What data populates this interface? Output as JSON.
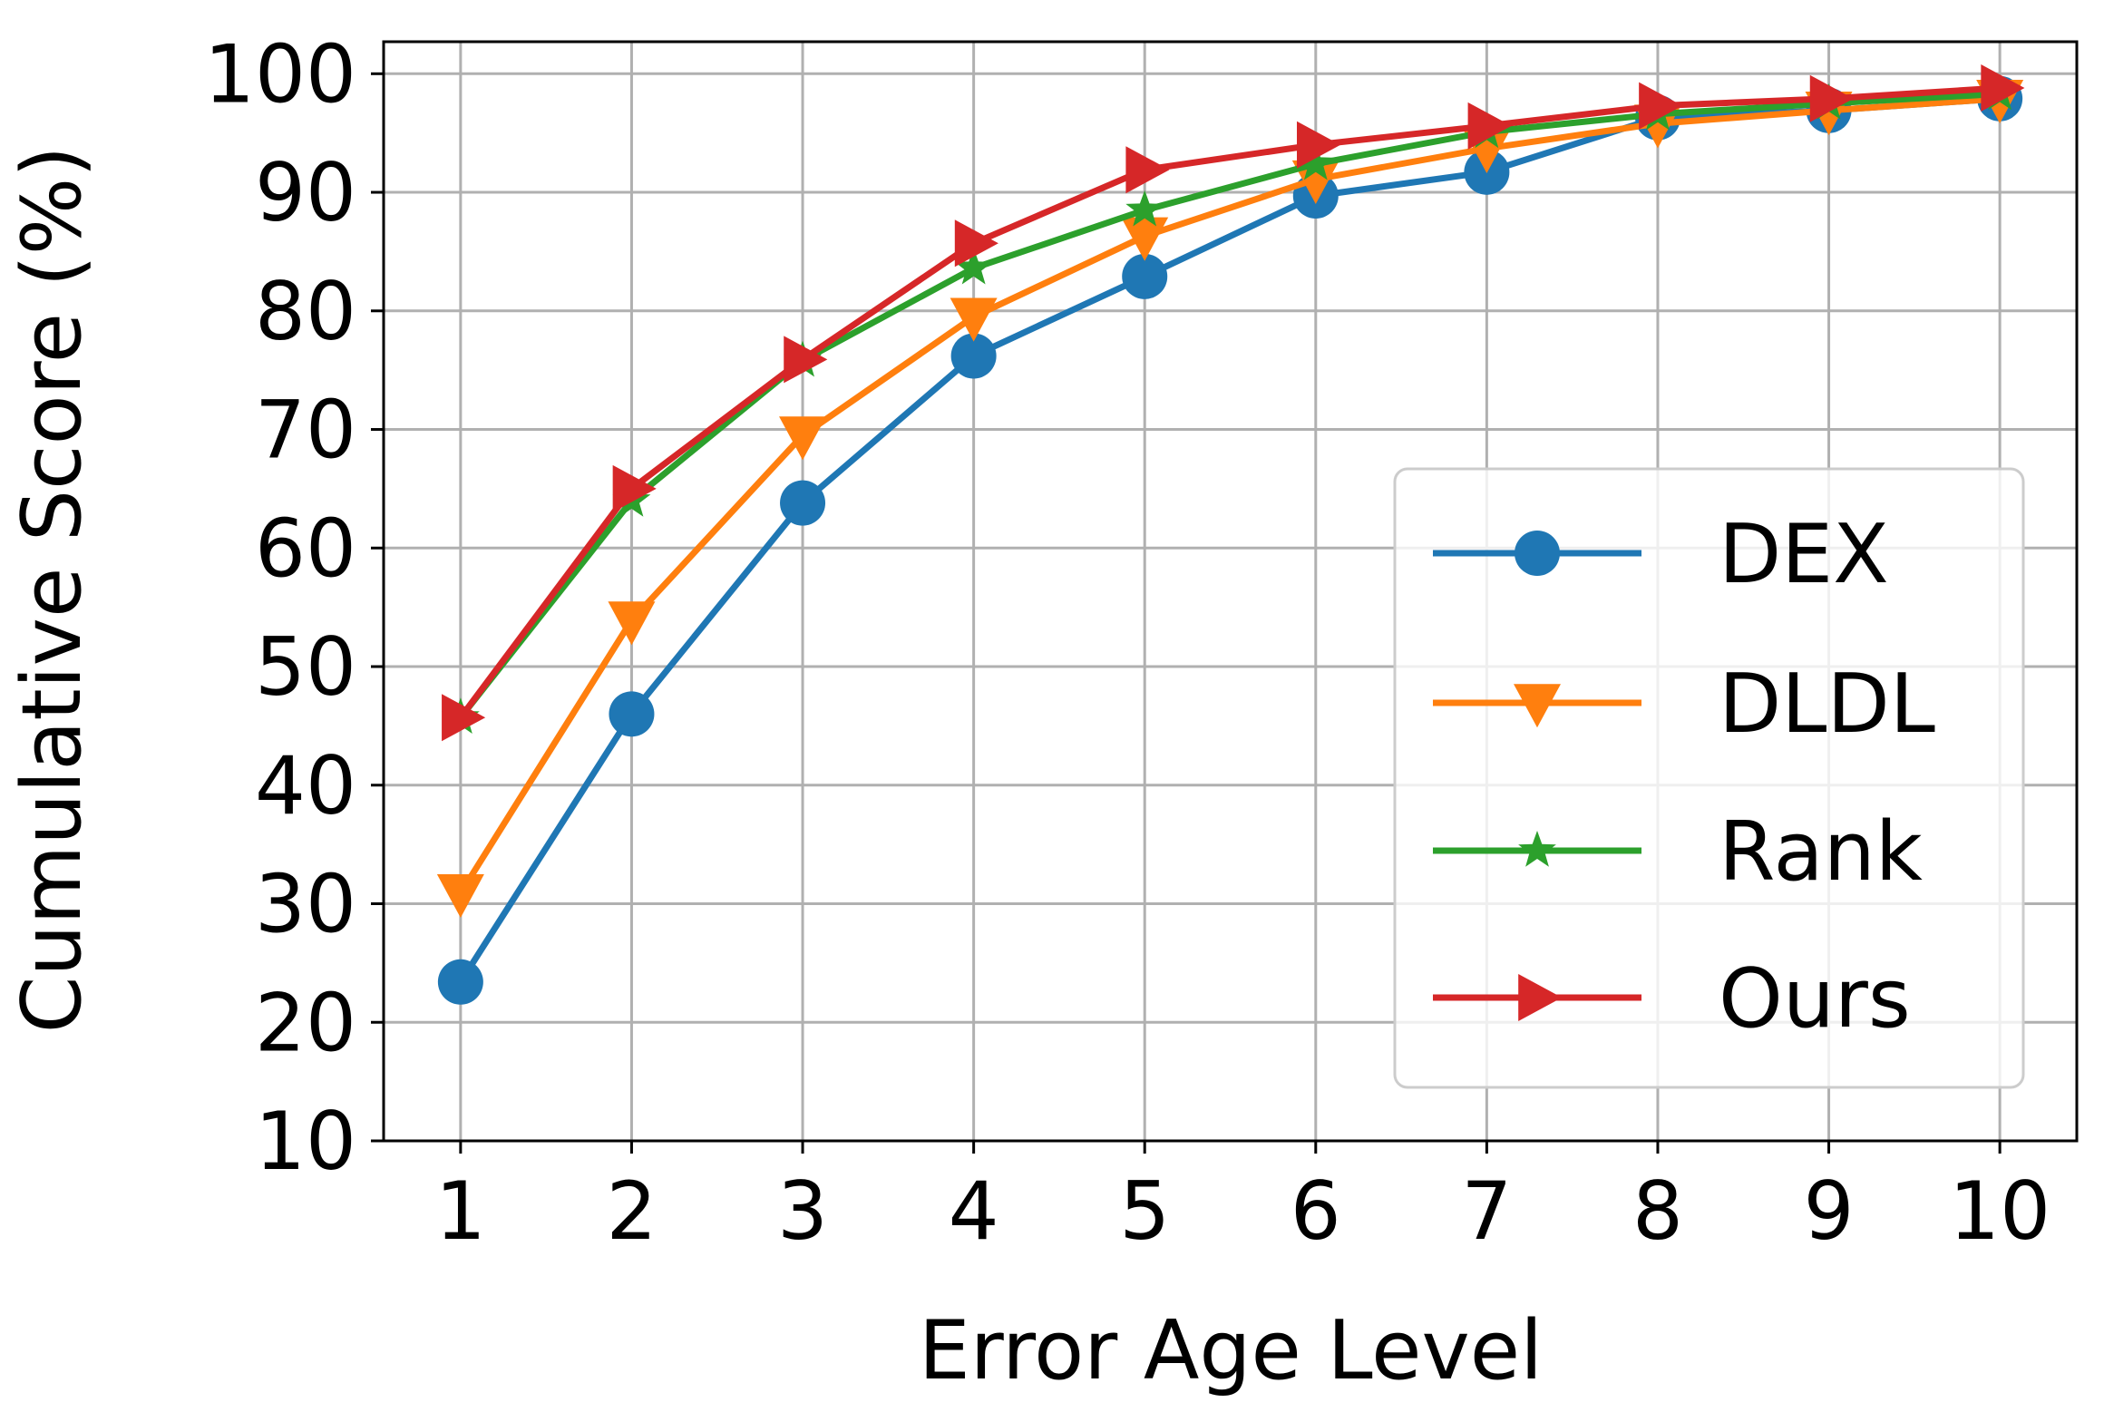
{
  "chart_data": {
    "type": "line",
    "xlabel": "Error Age Level",
    "ylabel": "Cumulative Score (%)",
    "x": [
      1,
      2,
      3,
      4,
      5,
      6,
      7,
      8,
      9,
      10
    ],
    "xticks": [
      "1",
      "2",
      "3",
      "4",
      "5",
      "6",
      "7",
      "8",
      "9",
      "10"
    ],
    "yticks": [
      "10",
      "20",
      "30",
      "40",
      "50",
      "60",
      "70",
      "80",
      "90",
      "100"
    ],
    "xlim": [
      0.55,
      10.45
    ],
    "ylim": [
      10,
      102.7
    ],
    "grid": true,
    "legend_position": "lower-right",
    "series": [
      {
        "name": "DEX",
        "color": "#1f77b4",
        "marker": "circle",
        "values": [
          23.4,
          46.0,
          63.8,
          76.2,
          82.9,
          89.7,
          91.7,
          96.3,
          96.9,
          97.9
        ]
      },
      {
        "name": "DLDL",
        "color": "#ff7f0e",
        "marker": "triangle-down",
        "values": [
          30.9,
          53.9,
          69.5,
          79.5,
          86.3,
          91.1,
          93.7,
          95.8,
          96.9,
          97.9
        ]
      },
      {
        "name": "Rank",
        "color": "#2ca02c",
        "marker": "star",
        "values": [
          45.7,
          64.0,
          75.8,
          83.6,
          88.5,
          92.4,
          95.1,
          96.6,
          97.5,
          98.3
        ]
      },
      {
        "name": "Ours",
        "color": "#d62728",
        "marker": "triangle-right",
        "values": [
          45.7,
          65.0,
          75.9,
          85.7,
          91.9,
          94.0,
          95.6,
          97.3,
          97.9,
          98.8
        ]
      }
    ]
  }
}
